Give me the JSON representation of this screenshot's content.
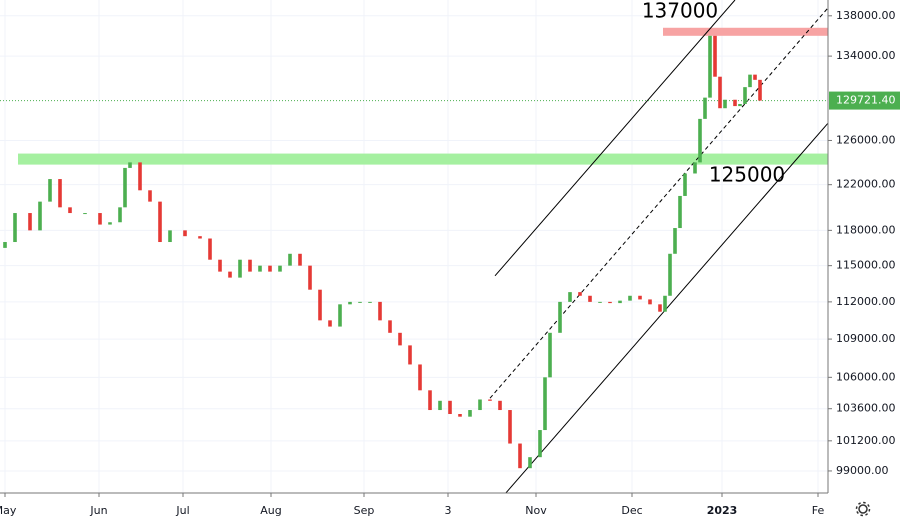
{
  "chart_data": {
    "type": "candlestick",
    "log_scale": true,
    "grid": true,
    "up_color": "#4caf50",
    "down_color": "#e53935",
    "line_color": "#000000",
    "x": [
      1,
      3,
      6,
      8,
      10,
      12,
      14,
      17,
      20,
      22,
      24,
      25,
      26,
      28,
      30,
      32,
      34,
      37,
      40,
      42,
      44,
      46,
      48,
      50,
      52,
      54,
      56,
      58,
      60,
      62,
      64,
      66,
      68,
      70,
      72,
      74,
      76,
      78,
      80,
      82,
      84,
      86,
      88,
      90,
      92,
      94,
      96,
      98,
      100,
      102,
      104,
      106,
      108,
      109,
      110,
      112,
      114,
      116,
      118,
      120,
      122,
      124,
      126,
      128,
      130,
      132,
      133,
      134,
      135,
      136,
      137,
      139,
      140,
      141,
      142,
      143,
      144,
      145,
      147,
      148,
      149,
      150,
      151,
      152
    ],
    "open": [
      116500,
      117000,
      119500,
      118000,
      120500,
      122500,
      120000,
      119500,
      119500,
      118500,
      118700,
      120000,
      123500,
      124000,
      121500,
      120500,
      117000,
      118000,
      117500,
      117300,
      115500,
      114500,
      114000,
      115500,
      114500,
      115000,
      114500,
      115000,
      116000,
      115000,
      113000,
      110500,
      110000,
      111800,
      112000,
      112000,
      112000,
      110500,
      109500,
      108500,
      107000,
      105000,
      103500,
      104200,
      103200,
      103000,
      103500,
      104300,
      104200,
      103500,
      101000,
      99200,
      100000,
      102000,
      106000,
      109500,
      112000,
      112800,
      112500,
      112000,
      112000,
      111900,
      112100,
      112500,
      112200,
      111800,
      111200,
      112500,
      116000,
      118200,
      121000,
      123000,
      124000,
      128000,
      130000,
      136000,
      132000,
      129000,
      129800,
      129200,
      129400,
      131000,
      132200,
      131700
    ],
    "close": [
      117000,
      119500,
      118000,
      120500,
      122500,
      120000,
      119500,
      119500,
      118500,
      118700,
      120000,
      123500,
      124000,
      121500,
      120500,
      117000,
      118000,
      117500,
      117300,
      115500,
      114500,
      114000,
      115500,
      114500,
      115000,
      114500,
      115000,
      116000,
      115000,
      113000,
      110500,
      110000,
      111800,
      112000,
      112000,
      112000,
      110500,
      109500,
      108500,
      107000,
      105000,
      103500,
      104200,
      103200,
      103000,
      103500,
      104300,
      104200,
      103500,
      101000,
      99200,
      100000,
      102000,
      106000,
      109500,
      112000,
      112800,
      112500,
      112000,
      112000,
      111900,
      112100,
      112500,
      112200,
      111800,
      111200,
      112500,
      116000,
      118200,
      121000,
      123000,
      124000,
      128000,
      130000,
      136000,
      132000,
      129000,
      129800,
      129200,
      129400,
      131000,
      132200,
      131700,
      129721.4
    ],
    "xlim": [
      0,
      165.6
    ],
    "ylim": [
      97420,
      139600
    ],
    "xticks": [
      {
        "value": 1,
        "label": "May"
      },
      {
        "value": 19.8,
        "label": "Jun"
      },
      {
        "value": 36.6,
        "label": "Jul"
      },
      {
        "value": 54.2,
        "label": "Aug"
      },
      {
        "value": 72.8,
        "label": "Sep"
      },
      {
        "value": 89.6,
        "label": "3"
      },
      {
        "value": 107.2,
        "label": "Nov"
      },
      {
        "value": 126.4,
        "label": "Dec"
      },
      {
        "value": 144.4,
        "label": "2023"
      },
      {
        "value": 163.6,
        "label": "Fe"
      }
    ],
    "yticks": [
      {
        "value": 99000,
        "label": "99000.00"
      },
      {
        "value": 101200,
        "label": "101200.00"
      },
      {
        "value": 103600,
        "label": "103600.00"
      },
      {
        "value": 106000,
        "label": "106000.00"
      },
      {
        "value": 109000,
        "label": "109000.00"
      },
      {
        "value": 112000,
        "label": "112000.00"
      },
      {
        "value": 115000,
        "label": "115000.00"
      },
      {
        "value": 118000,
        "label": "118000.00"
      },
      {
        "value": 122000,
        "label": "122000.00"
      },
      {
        "value": 126000,
        "label": "126000.00"
      },
      {
        "value": 134000,
        "label": "134000.00"
      },
      {
        "value": 138000,
        "label": "138000.00"
      }
    ],
    "last_price": {
      "value": 129721.4,
      "label": "129721.40",
      "color": "#4caf50"
    },
    "zones": [
      {
        "x": [
          132.6,
          165.6
        ],
        "y": [
          136000,
          136800
        ],
        "color": "#f7a3a3"
      },
      {
        "x": [
          3.6,
          165.6
        ],
        "y": [
          123800,
          124800
        ],
        "color": "#a5f0a0"
      }
    ],
    "lines": [
      {
        "x": [
          99,
          147
        ],
        "y": [
          114150,
          139600
        ],
        "dashed": false
      },
      {
        "x": [
          101,
          165.6
        ],
        "y": [
          97350,
          127600
        ],
        "dashed": false
      },
      {
        "x": [
          98,
          165.6
        ],
        "y": [
          104400,
          138800
        ],
        "dashed": true
      }
    ],
    "annotations": [
      {
        "text": "137000"
      },
      {
        "text": "125000"
      }
    ]
  }
}
